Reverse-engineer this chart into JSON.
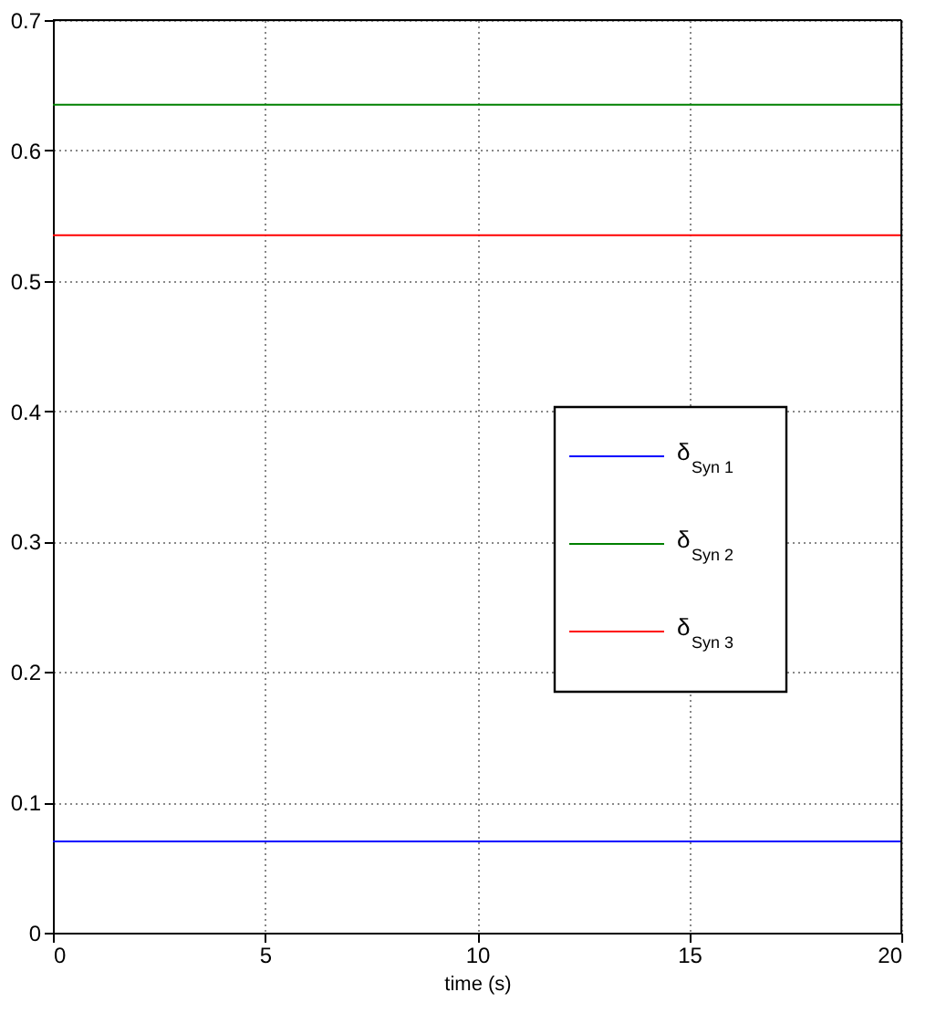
{
  "chart_data": {
    "type": "line",
    "xlabel": "time (s)",
    "x": [
      0,
      20
    ],
    "series": [
      {
        "name": "δ$_{Syn 1}$",
        "color": "#0000ff",
        "values": [
          0.07,
          0.07
        ]
      },
      {
        "name": "δ$_{Syn 2}$",
        "color": "#008000",
        "values": [
          0.635,
          0.635
        ]
      },
      {
        "name": "δ$_{Syn 3}$",
        "color": "#ff0000",
        "values": [
          0.535,
          0.535
        ]
      }
    ],
    "xlim": [
      0,
      20
    ],
    "xticks": [
      0,
      5,
      10,
      15,
      20
    ],
    "ylim": [
      0,
      0.7
    ],
    "yticks": [
      0,
      0.1,
      0.2,
      0.3,
      0.4,
      0.5,
      0.6,
      0.7
    ],
    "grid": true,
    "legend": "right",
    "line_style": "solid"
  }
}
